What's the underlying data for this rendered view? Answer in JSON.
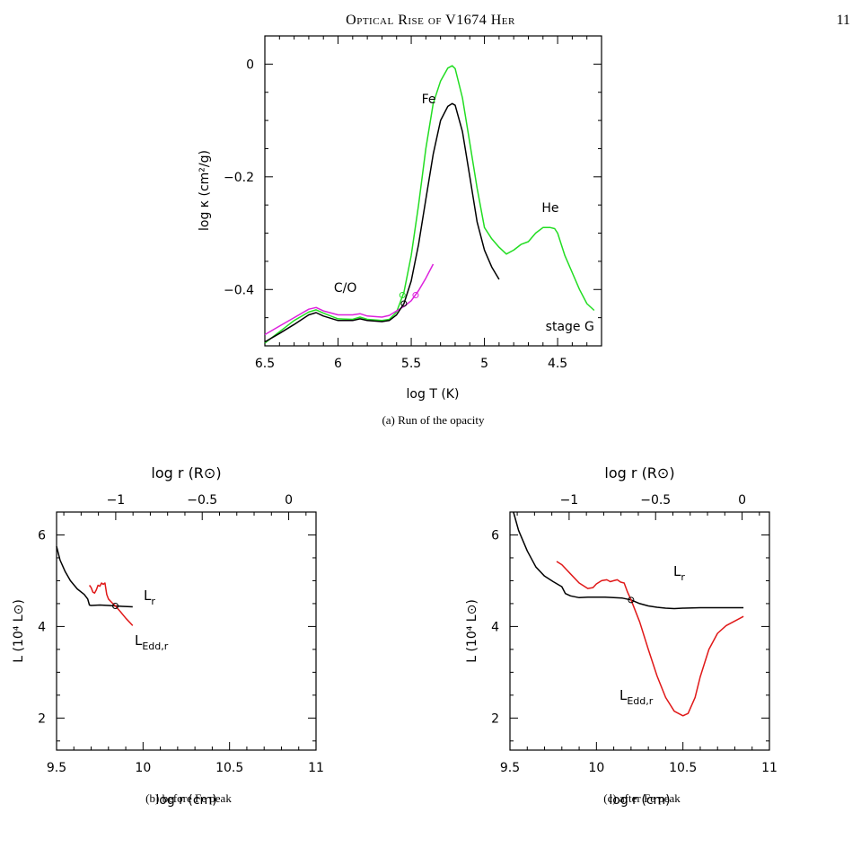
{
  "page": {
    "running_title": "Optical Rise of V1674 Her",
    "page_number": "11"
  },
  "colors": {
    "model": "#000000",
    "green": "#22dd22",
    "magenta": "#dd22dd",
    "eddington": "#e01818"
  },
  "chart_data": [
    {
      "id": "a",
      "type": "line",
      "caption": "(a) Run of the opacity",
      "xlabel": "log T (K)",
      "ylabel": "log κ (cm²/g)",
      "xlim": [
        6.5,
        4.2
      ],
      "ylim": [
        -0.5,
        0.05
      ],
      "x_reversed": true,
      "xticks": [
        "6.5",
        "6",
        "5.5",
        "5",
        "4.5"
      ],
      "yticks": [
        "0",
        "−0.2",
        "−0.4"
      ],
      "annotations": {
        "fe": "Fe",
        "he": "He",
        "co": "C/O",
        "stage": "stage G"
      },
      "series": [
        {
          "color": "green",
          "points": [
            [
              6.5,
              -0.495
            ],
            [
              6.4,
              -0.475
            ],
            [
              6.3,
              -0.455
            ],
            [
              6.2,
              -0.44
            ],
            [
              6.15,
              -0.436
            ],
            [
              6.1,
              -0.442
            ],
            [
              6.0,
              -0.452
            ],
            [
              5.9,
              -0.453
            ],
            [
              5.85,
              -0.449
            ],
            [
              5.8,
              -0.453
            ],
            [
              5.7,
              -0.455
            ],
            [
              5.65,
              -0.453
            ],
            [
              5.6,
              -0.44
            ],
            [
              5.55,
              -0.405
            ],
            [
              5.5,
              -0.34
            ],
            [
              5.45,
              -0.25
            ],
            [
              5.4,
              -0.15
            ],
            [
              5.35,
              -0.07
            ],
            [
              5.3,
              -0.03
            ],
            [
              5.25,
              -0.007
            ],
            [
              5.22,
              -0.003
            ],
            [
              5.2,
              -0.008
            ],
            [
              5.15,
              -0.06
            ],
            [
              5.1,
              -0.14
            ],
            [
              5.05,
              -0.22
            ],
            [
              5.0,
              -0.29
            ],
            [
              4.95,
              -0.31
            ],
            [
              4.9,
              -0.325
            ],
            [
              4.85,
              -0.337
            ],
            [
              4.8,
              -0.33
            ],
            [
              4.75,
              -0.32
            ],
            [
              4.7,
              -0.315
            ],
            [
              4.65,
              -0.3
            ],
            [
              4.6,
              -0.29
            ],
            [
              4.55,
              -0.29
            ],
            [
              4.52,
              -0.292
            ],
            [
              4.5,
              -0.3
            ],
            [
              4.45,
              -0.34
            ],
            [
              4.4,
              -0.37
            ],
            [
              4.35,
              -0.4
            ],
            [
              4.3,
              -0.425
            ],
            [
              4.25,
              -0.437
            ]
          ]
        },
        {
          "color": "magenta",
          "points": [
            [
              6.5,
              -0.48
            ],
            [
              6.4,
              -0.465
            ],
            [
              6.3,
              -0.45
            ],
            [
              6.2,
              -0.435
            ],
            [
              6.15,
              -0.432
            ],
            [
              6.1,
              -0.438
            ],
            [
              6.0,
              -0.445
            ],
            [
              5.9,
              -0.445
            ],
            [
              5.85,
              -0.443
            ],
            [
              5.8,
              -0.447
            ],
            [
              5.7,
              -0.449
            ],
            [
              5.65,
              -0.446
            ],
            [
              5.6,
              -0.438
            ],
            [
              5.55,
              -0.43
            ],
            [
              5.5,
              -0.42
            ],
            [
              5.45,
              -0.402
            ],
            [
              5.4,
              -0.38
            ],
            [
              5.35,
              -0.355
            ]
          ]
        },
        {
          "color": "model",
          "points": [
            [
              6.5,
              -0.493
            ],
            [
              6.4,
              -0.478
            ],
            [
              6.3,
              -0.462
            ],
            [
              6.2,
              -0.445
            ],
            [
              6.15,
              -0.441
            ],
            [
              6.1,
              -0.447
            ],
            [
              6.0,
              -0.455
            ],
            [
              5.9,
              -0.455
            ],
            [
              5.85,
              -0.452
            ],
            [
              5.8,
              -0.455
            ],
            [
              5.7,
              -0.457
            ],
            [
              5.65,
              -0.455
            ],
            [
              5.6,
              -0.445
            ],
            [
              5.55,
              -0.425
            ],
            [
              5.5,
              -0.385
            ],
            [
              5.45,
              -0.32
            ],
            [
              5.4,
              -0.24
            ],
            [
              5.35,
              -0.16
            ],
            [
              5.3,
              -0.1
            ],
            [
              5.25,
              -0.075
            ],
            [
              5.22,
              -0.07
            ],
            [
              5.2,
              -0.073
            ],
            [
              5.15,
              -0.12
            ],
            [
              5.1,
              -0.2
            ],
            [
              5.05,
              -0.28
            ],
            [
              5.0,
              -0.33
            ],
            [
              4.95,
              -0.36
            ],
            [
              4.9,
              -0.382
            ]
          ]
        }
      ],
      "markers": [
        {
          "color": "green",
          "x": 5.56,
          "y": -0.41
        },
        {
          "color": "magenta",
          "x": 5.47,
          "y": -0.41
        },
        {
          "color": "model",
          "x": 5.55,
          "y": -0.425
        }
      ]
    },
    {
      "id": "b",
      "type": "line",
      "caption": "(b) before Fe peak",
      "xlabel": "log r (cm)",
      "ylabel": "L (10⁴ L⊙)",
      "top_xlabel": "log r (R⊙)",
      "xlim": [
        9.5,
        11
      ],
      "ylim": [
        1.3,
        6.5
      ],
      "xticks": [
        "9.5",
        "10",
        "10.5",
        "11"
      ],
      "yticks": [
        "2",
        "4",
        "6"
      ],
      "top_ticks": [
        "−1",
        "−0.5",
        "0"
      ],
      "labels": {
        "lr": "L",
        "lr_sub": "r",
        "ledd": "L",
        "ledd_sub": "Edd,r"
      },
      "series": [
        {
          "name": "Lr",
          "color": "model",
          "points": [
            [
              9.5,
              5.75
            ],
            [
              9.52,
              5.45
            ],
            [
              9.55,
              5.2
            ],
            [
              9.58,
              5.0
            ],
            [
              9.62,
              4.82
            ],
            [
              9.66,
              4.7
            ],
            [
              9.68,
              4.6
            ],
            [
              9.69,
              4.47
            ],
            [
              9.7,
              4.46
            ],
            [
              9.75,
              4.47
            ],
            [
              9.8,
              4.46
            ],
            [
              9.84,
              4.45
            ],
            [
              9.88,
              4.44
            ],
            [
              9.94,
              4.43
            ]
          ]
        },
        {
          "name": "LEdd,r",
          "color": "eddington",
          "points": [
            [
              9.69,
              4.9
            ],
            [
              9.7,
              4.85
            ],
            [
              9.71,
              4.75
            ],
            [
              9.72,
              4.73
            ],
            [
              9.73,
              4.8
            ],
            [
              9.74,
              4.9
            ],
            [
              9.75,
              4.88
            ],
            [
              9.76,
              4.95
            ],
            [
              9.77,
              4.92
            ],
            [
              9.78,
              4.95
            ],
            [
              9.79,
              4.7
            ],
            [
              9.8,
              4.6
            ],
            [
              9.82,
              4.52
            ],
            [
              9.84,
              4.45
            ],
            [
              9.87,
              4.32
            ],
            [
              9.9,
              4.18
            ],
            [
              9.94,
              4.02
            ]
          ]
        }
      ],
      "markers": [
        {
          "x": 9.84,
          "y": 4.45
        }
      ]
    },
    {
      "id": "c",
      "type": "line",
      "caption": "(c) after Fe peak",
      "xlabel": "log r (cm)",
      "ylabel": "L (10⁴ L⊙)",
      "top_xlabel": "log r (R⊙)",
      "xlim": [
        9.5,
        11
      ],
      "ylim": [
        1.3,
        6.5
      ],
      "xticks": [
        "9.5",
        "10",
        "10.5",
        "11"
      ],
      "yticks": [
        "2",
        "4",
        "6"
      ],
      "top_ticks": [
        "−1",
        "−0.5",
        "0"
      ],
      "labels": {
        "lr": "L",
        "lr_sub": "r",
        "ledd": "L",
        "ledd_sub": "Edd,r"
      },
      "series": [
        {
          "name": "Lr",
          "color": "model",
          "points": [
            [
              9.52,
              6.5
            ],
            [
              9.55,
              6.1
            ],
            [
              9.6,
              5.65
            ],
            [
              9.65,
              5.3
            ],
            [
              9.7,
              5.1
            ],
            [
              9.75,
              4.98
            ],
            [
              9.8,
              4.87
            ],
            [
              9.82,
              4.72
            ],
            [
              9.85,
              4.67
            ],
            [
              9.9,
              4.63
            ],
            [
              9.95,
              4.64
            ],
            [
              10.0,
              4.64
            ],
            [
              10.05,
              4.64
            ],
            [
              10.1,
              4.63
            ],
            [
              10.15,
              4.62
            ],
            [
              10.2,
              4.58
            ],
            [
              10.25,
              4.5
            ],
            [
              10.3,
              4.45
            ],
            [
              10.35,
              4.42
            ],
            [
              10.4,
              4.4
            ],
            [
              10.45,
              4.39
            ],
            [
              10.5,
              4.4
            ],
            [
              10.6,
              4.41
            ],
            [
              10.7,
              4.41
            ],
            [
              10.8,
              4.41
            ],
            [
              10.85,
              4.41
            ]
          ]
        },
        {
          "name": "LEdd,r",
          "color": "eddington",
          "points": [
            [
              9.77,
              5.42
            ],
            [
              9.8,
              5.35
            ],
            [
              9.85,
              5.15
            ],
            [
              9.9,
              4.95
            ],
            [
              9.95,
              4.83
            ],
            [
              9.98,
              4.85
            ],
            [
              10.0,
              4.93
            ],
            [
              10.03,
              5.0
            ],
            [
              10.06,
              5.02
            ],
            [
              10.08,
              4.98
            ],
            [
              10.1,
              5.0
            ],
            [
              10.12,
              5.02
            ],
            [
              10.14,
              4.97
            ],
            [
              10.16,
              4.95
            ],
            [
              10.18,
              4.75
            ],
            [
              10.2,
              4.58
            ],
            [
              10.25,
              4.1
            ],
            [
              10.3,
              3.5
            ],
            [
              10.35,
              2.92
            ],
            [
              10.4,
              2.45
            ],
            [
              10.45,
              2.15
            ],
            [
              10.5,
              2.05
            ],
            [
              10.53,
              2.1
            ],
            [
              10.57,
              2.45
            ],
            [
              10.6,
              2.9
            ],
            [
              10.65,
              3.5
            ],
            [
              10.7,
              3.85
            ],
            [
              10.75,
              4.02
            ],
            [
              10.8,
              4.12
            ],
            [
              10.85,
              4.22
            ]
          ]
        }
      ],
      "markers": [
        {
          "x": 10.2,
          "y": 4.58
        }
      ]
    }
  ]
}
